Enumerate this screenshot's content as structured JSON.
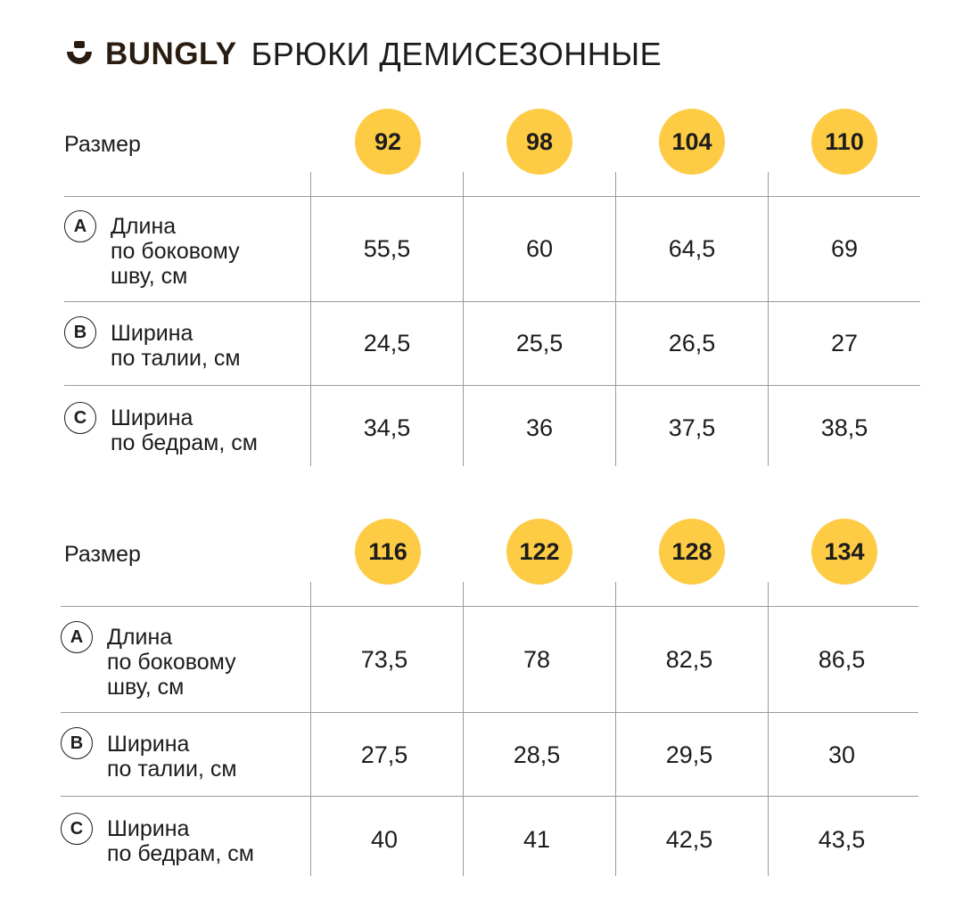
{
  "header": {
    "brand": "BUNGLY",
    "title": "БРЮКИ ДЕМИСЕЗОННЫЕ",
    "accent_color": "#fdcb44",
    "brand_color": "#2a1c10"
  },
  "tables": [
    {
      "size_label": "Размер",
      "sizes": [
        "92",
        "98",
        "104",
        "110"
      ],
      "rows": [
        {
          "badge": "A",
          "label": [
            "Длина",
            "по боковому",
            "шву, см"
          ],
          "values": [
            "55,5",
            "60",
            "64,5",
            "69"
          ]
        },
        {
          "badge": "B",
          "label": [
            "Ширина",
            "по талии, см"
          ],
          "values": [
            "24,5",
            "25,5",
            "26,5",
            "27"
          ]
        },
        {
          "badge": "C",
          "label": [
            "Ширина",
            "по бедрам, см"
          ],
          "values": [
            "34,5",
            "36",
            "37,5",
            "38,5"
          ]
        }
      ]
    },
    {
      "size_label": "Размер",
      "sizes": [
        "116",
        "122",
        "128",
        "134"
      ],
      "rows": [
        {
          "badge": "A",
          "label": [
            "Длина",
            "по боковому",
            "шву, см"
          ],
          "values": [
            "73,5",
            "78",
            "82,5",
            "86,5"
          ]
        },
        {
          "badge": "B",
          "label": [
            "Ширина",
            "по талии, см"
          ],
          "values": [
            "27,5",
            "28,5",
            "29,5",
            "30"
          ]
        },
        {
          "badge": "C",
          "label": [
            "Ширина",
            "по бедрам, см"
          ],
          "values": [
            "40",
            "41",
            "42,5",
            "43,5"
          ]
        }
      ]
    }
  ]
}
